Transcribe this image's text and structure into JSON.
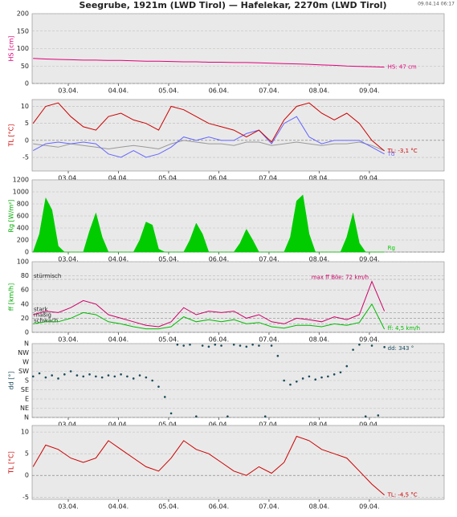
{
  "title": "Seegrube, 1921m (LWD Tirol) — Hafelekar, 2270m (LWD Tirol)",
  "timestamp": "09.04.14 06:17",
  "chart_data": [
    {
      "type": "line",
      "ylabel": "HS [cm]",
      "label_color": "#e0007a",
      "grid": true,
      "x": [
        -0.7,
        -0.45,
        -0.2,
        0.05,
        0.3,
        0.55,
        0.8,
        1.05,
        1.3,
        1.55,
        1.8,
        2.05,
        2.3,
        2.55,
        2.8,
        3.05,
        3.3,
        3.55,
        3.8,
        4.05,
        4.3,
        4.55,
        4.8,
        5.05,
        5.3,
        5.55,
        5.8,
        6.05,
        6.3
      ],
      "xlim": [
        -0.72,
        7.49
      ],
      "xticks": [
        {
          "value": 0,
          "label": "03.04."
        },
        {
          "value": 1,
          "label": "04.04."
        },
        {
          "value": 2,
          "label": "05.04."
        },
        {
          "value": 3,
          "label": "06.04."
        },
        {
          "value": 4,
          "label": "07.04."
        },
        {
          "value": 5,
          "label": "08.04."
        },
        {
          "value": 6,
          "label": "09.04."
        }
      ],
      "ylim": [
        0,
        200
      ],
      "yticks": [
        0,
        50,
        100,
        150,
        200
      ],
      "series": [
        {
          "color": "#e0007a",
          "end_label": "HS: 47 cm",
          "values": [
            72,
            70,
            69,
            68,
            67,
            67,
            66,
            66,
            65,
            64,
            64,
            63,
            62,
            62,
            61,
            61,
            60,
            60,
            59,
            58,
            57,
            56,
            55,
            53,
            52,
            50,
            49,
            48,
            47
          ]
        }
      ]
    },
    {
      "type": "line",
      "ylabel": "TL [°C]",
      "label_color": "#cc0000",
      "grid": true,
      "x": [
        -0.7,
        -0.45,
        -0.2,
        0.05,
        0.3,
        0.55,
        0.8,
        1.05,
        1.3,
        1.55,
        1.8,
        2.05,
        2.3,
        2.55,
        2.8,
        3.05,
        3.3,
        3.55,
        3.8,
        4.05,
        4.3,
        4.55,
        4.8,
        5.05,
        5.3,
        5.55,
        5.8,
        6.05,
        6.3
      ],
      "xlim": [
        -0.72,
        7.49
      ],
      "xticks": [
        {
          "value": 0,
          "label": "03.04."
        },
        {
          "value": 1,
          "label": "04.04."
        },
        {
          "value": 2,
          "label": "05.04."
        },
        {
          "value": 3,
          "label": "06.04."
        },
        {
          "value": 4,
          "label": "07.04."
        },
        {
          "value": 5,
          "label": "08.04."
        },
        {
          "value": 6,
          "label": "09.04."
        }
      ],
      "ylim": [
        -9,
        12
      ],
      "yticks": [
        -5,
        0,
        5,
        10
      ],
      "series": [
        {
          "color": "#999999",
          "values": [
            -1,
            -1.5,
            -2,
            -1,
            -1.5,
            -2,
            -2.5,
            -2,
            -1.5,
            -2,
            -2.5,
            -1,
            0,
            -0.5,
            -1,
            -1,
            -1.5,
            -0.5,
            -0.5,
            -1.5,
            -1,
            -0.5,
            -1,
            -1.5,
            -1,
            -1,
            -0.5,
            -1.5,
            -3
          ]
        },
        {
          "color": "#6666ff",
          "end_label": "Td",
          "values": [
            -3,
            -1,
            -0.5,
            -1,
            -0.5,
            -1,
            -4,
            -5,
            -3,
            -5,
            -4,
            -2,
            1,
            0,
            1,
            0,
            0,
            2,
            3,
            -1,
            5,
            7,
            1,
            -1,
            0,
            0,
            0,
            -2,
            -4
          ]
        },
        {
          "color": "#cc0000",
          "end_label": "TL: -3,1 °C",
          "values": [
            5,
            10,
            11,
            7,
            4,
            3,
            7,
            8,
            6,
            5,
            3,
            10,
            9,
            7,
            5,
            4,
            3,
            1,
            3,
            -0.5,
            6,
            10,
            11,
            8,
            6,
            8,
            5,
            0,
            -3.1
          ]
        }
      ]
    },
    {
      "type": "area",
      "ylabel": "Rg [W/m²]",
      "label_color": "#00aa00",
      "grid": true,
      "x": [
        -0.7,
        -0.575,
        -0.45,
        -0.325,
        -0.2,
        -0.075,
        0.05,
        0.175,
        0.3,
        0.425,
        0.55,
        0.675,
        0.8,
        0.925,
        1.05,
        1.175,
        1.3,
        1.425,
        1.55,
        1.675,
        1.8,
        1.925,
        2.05,
        2.175,
        2.3,
        2.425,
        2.55,
        2.675,
        2.8,
        2.925,
        3.05,
        3.175,
        3.3,
        3.425,
        3.55,
        3.675,
        3.8,
        3.925,
        4.05,
        4.175,
        4.3,
        4.425,
        4.55,
        4.675,
        4.8,
        4.925,
        5.05,
        5.175,
        5.3,
        5.425,
        5.55,
        5.675,
        5.8,
        5.925,
        6.05,
        6.175,
        6.3
      ],
      "xlim": [
        -0.72,
        7.49
      ],
      "xticks": [
        {
          "value": 0,
          "label": "03.04."
        },
        {
          "value": 1,
          "label": "04.04."
        },
        {
          "value": 2,
          "label": "05.04."
        },
        {
          "value": 3,
          "label": "06.04."
        },
        {
          "value": 4,
          "label": "07.04."
        },
        {
          "value": 5,
          "label": "08.04."
        },
        {
          "value": 6,
          "label": "09.04."
        }
      ],
      "ylim": [
        0,
        1200
      ],
      "yticks": [
        0,
        200,
        400,
        600,
        800,
        1000,
        1200
      ],
      "series": [
        {
          "color": "#00cc00",
          "end_label": "Rg",
          "values": [
            0,
            300,
            900,
            700,
            100,
            0,
            0,
            0,
            0,
            350,
            650,
            250,
            0,
            0,
            0,
            0,
            0,
            200,
            500,
            450,
            50,
            0,
            0,
            0,
            0,
            200,
            480,
            300,
            0,
            0,
            0,
            0,
            0,
            150,
            380,
            200,
            0,
            0,
            0,
            0,
            0,
            250,
            850,
            950,
            300,
            0,
            0,
            0,
            0,
            0,
            250,
            650,
            150,
            0,
            0,
            0,
            0
          ]
        }
      ]
    },
    {
      "type": "line",
      "ylabel": "ff [km/h]",
      "label_color": "#00aa00",
      "grid": true,
      "x": [
        -0.7,
        -0.45,
        -0.2,
        0.05,
        0.3,
        0.55,
        0.8,
        1.05,
        1.3,
        1.55,
        1.8,
        2.05,
        2.3,
        2.55,
        2.8,
        3.05,
        3.3,
        3.55,
        3.8,
        4.05,
        4.3,
        4.55,
        4.8,
        5.05,
        5.3,
        5.55,
        5.8,
        6.05,
        6.3
      ],
      "xlim": [
        -0.72,
        7.49
      ],
      "xticks": [
        {
          "value": 0,
          "label": "03.04."
        },
        {
          "value": 1,
          "label": "04.04."
        },
        {
          "value": 2,
          "label": "05.04."
        },
        {
          "value": 3,
          "label": "06.04."
        },
        {
          "value": 4,
          "label": "07.04."
        },
        {
          "value": 5,
          "label": "08.04."
        },
        {
          "value": 6,
          "label": "09.04."
        }
      ],
      "ylim": [
        0,
        100
      ],
      "yticks": [
        0,
        20,
        40,
        60,
        80,
        100
      ],
      "levels": [
        {
          "label": "stürmisch",
          "value": 75
        },
        {
          "label": "stark",
          "value": 28
        },
        {
          "label": "mäßig",
          "value": 20
        },
        {
          "label": "schwach",
          "value": 12
        }
      ],
      "series": [
        {
          "color": "#cc0066",
          "max_label": "max ff Böe: 72 km/h",
          "values": [
            25,
            30,
            28,
            35,
            45,
            40,
            25,
            20,
            15,
            10,
            8,
            15,
            35,
            25,
            30,
            28,
            30,
            20,
            25,
            15,
            12,
            20,
            18,
            15,
            22,
            18,
            25,
            72,
            30
          ]
        },
        {
          "color": "#00bb00",
          "end_label": "ff: 4,5 km/h",
          "values": [
            12,
            15,
            15,
            20,
            28,
            25,
            15,
            12,
            8,
            5,
            5,
            8,
            22,
            15,
            18,
            15,
            18,
            12,
            14,
            8,
            6,
            10,
            10,
            8,
            12,
            10,
            14,
            40,
            4.5
          ]
        }
      ]
    },
    {
      "type": "scatter",
      "ylabel": "dd [°]",
      "label_color": "#1a4a5a",
      "grid": true,
      "x": [
        -0.7,
        -0.575,
        -0.45,
        -0.325,
        -0.2,
        -0.075,
        0.05,
        0.175,
        0.3,
        0.425,
        0.55,
        0.675,
        0.8,
        0.925,
        1.05,
        1.175,
        1.3,
        1.425,
        1.55,
        1.675,
        1.8,
        1.925,
        2.05,
        2.175,
        2.3,
        2.425,
        2.55,
        2.675,
        2.8,
        2.925,
        3.05,
        3.175,
        3.3,
        3.425,
        3.55,
        3.675,
        3.8,
        3.925,
        4.05,
        4.175,
        4.3,
        4.425,
        4.55,
        4.675,
        4.8,
        4.925,
        5.05,
        5.175,
        5.3,
        5.425,
        5.55,
        5.675,
        5.8,
        5.925,
        6.05,
        6.175,
        6.3
      ],
      "xlim": [
        -0.72,
        7.49
      ],
      "xticks": [
        {
          "value": 0,
          "label": "03.04."
        },
        {
          "value": 1,
          "label": "04.04."
        },
        {
          "value": 2,
          "label": "05.04."
        },
        {
          "value": 3,
          "label": "06.04."
        },
        {
          "value": 4,
          "label": "07.04."
        },
        {
          "value": 5,
          "label": "08.04."
        },
        {
          "value": 6,
          "label": "09.04."
        }
      ],
      "ylim": [
        0,
        360
      ],
      "yticks": [
        {
          "value": 0,
          "label": "N"
        },
        {
          "value": 45,
          "label": "NE"
        },
        {
          "value": 90,
          "label": "E"
        },
        {
          "value": 135,
          "label": "SE"
        },
        {
          "value": 180,
          "label": "S"
        },
        {
          "value": 225,
          "label": "SW"
        },
        {
          "value": 270,
          "label": "W"
        },
        {
          "value": 315,
          "label": "NW"
        },
        {
          "value": 360,
          "label": "N"
        }
      ],
      "series": [
        {
          "color": "#1a4a5a",
          "end_label": "dd: 343 °",
          "values": [
            200,
            215,
            195,
            205,
            190,
            210,
            225,
            205,
            200,
            210,
            200,
            195,
            205,
            200,
            210,
            200,
            190,
            205,
            195,
            180,
            150,
            100,
            20,
            355,
            350,
            355,
            5,
            350,
            345,
            355,
            350,
            5,
            355,
            350,
            345,
            355,
            350,
            5,
            350,
            300,
            180,
            160,
            175,
            190,
            200,
            185,
            195,
            200,
            210,
            220,
            250,
            330,
            355,
            5,
            350,
            10,
            343
          ]
        }
      ]
    },
    {
      "type": "line",
      "ylabel": "TL [°C]",
      "label_color": "#cc0000",
      "grid": true,
      "x": [
        -0.7,
        -0.45,
        -0.2,
        0.05,
        0.3,
        0.55,
        0.8,
        1.05,
        1.3,
        1.55,
        1.8,
        2.05,
        2.3,
        2.55,
        2.8,
        3.05,
        3.3,
        3.55,
        3.8,
        4.05,
        4.3,
        4.55,
        4.8,
        5.05,
        5.3,
        5.55,
        5.8,
        6.05,
        6.3
      ],
      "xlim": [
        -0.72,
        7.49
      ],
      "xticks": [
        {
          "value": 0,
          "label": "03.04."
        },
        {
          "value": 1,
          "label": "04.04."
        },
        {
          "value": 2,
          "label": "05.04."
        },
        {
          "value": 3,
          "label": "06.04."
        },
        {
          "value": 4,
          "label": "07.04."
        },
        {
          "value": 5,
          "label": "08.04."
        },
        {
          "value": 6,
          "label": "09.04."
        }
      ],
      "ylim": [
        -5.5,
        11.5
      ],
      "yticks": [
        -5,
        0,
        5,
        10
      ],
      "series": [
        {
          "color": "#cc0000",
          "end_label": "TL: -4,5 °C",
          "values": [
            2,
            7,
            6,
            4,
            3,
            4,
            8,
            6,
            4,
            2,
            1,
            4,
            8,
            6,
            5,
            3,
            1,
            0,
            2,
            0.5,
            3,
            9,
            8,
            6,
            5,
            4,
            1,
            -2,
            -4.5
          ]
        }
      ]
    }
  ]
}
